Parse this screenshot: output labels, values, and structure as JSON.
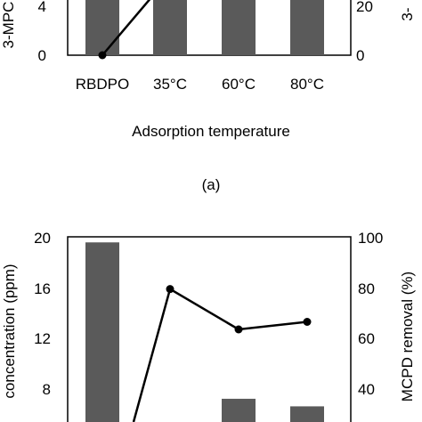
{
  "chart_data": [
    {
      "panel": "a",
      "type": "bar",
      "categories": [
        "RBDPO",
        "35°C",
        "60°C",
        "80°C"
      ],
      "xlabel": "Adsorption temperature",
      "ylabel_left_partial": "3-MPC",
      "ylabel_right_partial": "3-",
      "left_ticks": [
        "4",
        "0"
      ],
      "right_ticks": [
        "20",
        "0"
      ],
      "bar_values": [
        null,
        null,
        null,
        null
      ],
      "line_values": [
        0,
        null,
        null,
        null
      ],
      "caption": "(a)"
    },
    {
      "type": "bar",
      "ylabel_left_partial": "concentration (ppm)",
      "ylabel_right_partial": "MCPD removal (%)",
      "left_ticks": [
        "20",
        "16",
        "12",
        "8"
      ],
      "right_ticks": [
        "100",
        "80",
        "60",
        "40"
      ],
      "ylim": [
        0,
        20
      ],
      "ylim_right": [
        0,
        100
      ],
      "bar_values": [
        19.7,
        null,
        7.3,
        6.7
      ],
      "line_values": [
        null,
        80,
        64,
        67
      ]
    }
  ]
}
